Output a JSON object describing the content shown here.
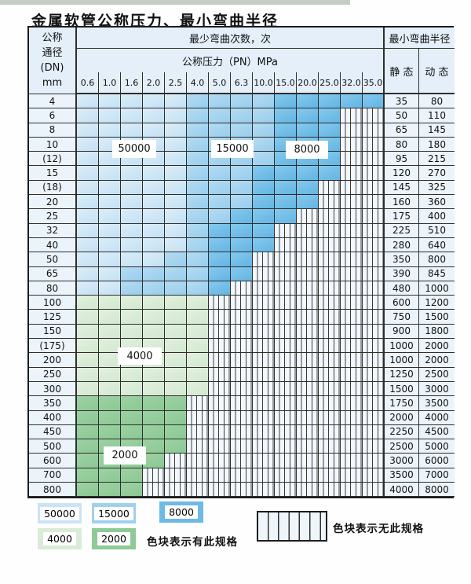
{
  "page": {
    "title": "金属软管公称压力、最小弯曲半径"
  },
  "table": {
    "header": {
      "dn_lines": [
        "公称",
        "通径",
        "(DN)",
        "mm"
      ],
      "cycles_title": "最少弯曲次数，次",
      "pressure_title": "公称压力（PN）MPa",
      "radius_title": "最小弯曲半径",
      "static_label": "静 态",
      "dynamic_label": "动 态",
      "pressures": [
        "0.6",
        "1.0",
        "1.6",
        "2.0",
        "2.5",
        "4.0",
        "5.0",
        "6.3",
        "10.0",
        "15.0",
        "20.0",
        "25.0",
        "32.0",
        "35.0"
      ]
    },
    "rows": [
      {
        "dn": "4",
        "zones": [
          "a",
          "a",
          "a",
          "a",
          "a",
          "b",
          "b",
          "b",
          "b",
          "c",
          "c",
          "c",
          "c",
          "c"
        ],
        "static": "35",
        "dynamic": "80"
      },
      {
        "dn": "6",
        "zones": [
          "a",
          "a",
          "a",
          "a",
          "a",
          "b",
          "b",
          "b",
          "b",
          "c",
          "c",
          "c",
          "x",
          "x"
        ],
        "static": "50",
        "dynamic": "110"
      },
      {
        "dn": "8",
        "zones": [
          "a",
          "a",
          "a",
          "a",
          "a",
          "b",
          "b",
          "b",
          "b",
          "c",
          "c",
          "c",
          "x",
          "x"
        ],
        "static": "65",
        "dynamic": "145"
      },
      {
        "dn": "10",
        "zones": [
          "a",
          "a",
          "a",
          "a",
          "a",
          "b",
          "b",
          "b",
          "b",
          "c",
          "c",
          "c",
          "x",
          "x"
        ],
        "static": "80",
        "dynamic": "180"
      },
      {
        "dn": "(12)",
        "zones": [
          "a",
          "a",
          "a",
          "a",
          "a",
          "b",
          "b",
          "b",
          "b",
          "c",
          "c",
          "c",
          "x",
          "x"
        ],
        "static": "95",
        "dynamic": "215"
      },
      {
        "dn": "15",
        "zones": [
          "a",
          "a",
          "a",
          "a",
          "a",
          "b",
          "b",
          "b",
          "c",
          "c",
          "c",
          "c",
          "x",
          "x"
        ],
        "static": "120",
        "dynamic": "270"
      },
      {
        "dn": "(18)",
        "zones": [
          "a",
          "a",
          "a",
          "a",
          "a",
          "b",
          "b",
          "b",
          "c",
          "c",
          "c",
          "x",
          "x",
          "x"
        ],
        "static": "145",
        "dynamic": "325"
      },
      {
        "dn": "20",
        "zones": [
          "a",
          "a",
          "a",
          "a",
          "a",
          "b",
          "b",
          "b",
          "c",
          "c",
          "c",
          "x",
          "x",
          "x"
        ],
        "static": "160",
        "dynamic": "360"
      },
      {
        "dn": "25",
        "zones": [
          "a",
          "a",
          "a",
          "a",
          "a",
          "b",
          "b",
          "c",
          "c",
          "c",
          "x",
          "x",
          "x",
          "x"
        ],
        "static": "175",
        "dynamic": "400"
      },
      {
        "dn": "32",
        "zones": [
          "a",
          "a",
          "a",
          "a",
          "a",
          "b",
          "c",
          "c",
          "c",
          "x",
          "x",
          "x",
          "x",
          "x"
        ],
        "static": "225",
        "dynamic": "510"
      },
      {
        "dn": "40",
        "zones": [
          "a",
          "a",
          "a",
          "a",
          "a",
          "b",
          "c",
          "c",
          "c",
          "x",
          "x",
          "x",
          "x",
          "x"
        ],
        "static": "280",
        "dynamic": "640"
      },
      {
        "dn": "50",
        "zones": [
          "a",
          "a",
          "a",
          "a",
          "b",
          "b",
          "c",
          "c",
          "x",
          "x",
          "x",
          "x",
          "x",
          "x"
        ],
        "static": "350",
        "dynamic": "800"
      },
      {
        "dn": "65",
        "zones": [
          "a",
          "a",
          "b",
          "b",
          "b",
          "b",
          "c",
          "c",
          "x",
          "x",
          "x",
          "x",
          "x",
          "x"
        ],
        "static": "390",
        "dynamic": "845"
      },
      {
        "dn": "80",
        "zones": [
          "a",
          "a",
          "b",
          "b",
          "b",
          "b",
          "c",
          "x",
          "x",
          "x",
          "x",
          "x",
          "x",
          "x"
        ],
        "static": "480",
        "dynamic": "1000"
      },
      {
        "dn": "100",
        "zones": [
          "d",
          "d",
          "d",
          "d",
          "d",
          "d",
          "x",
          "x",
          "x",
          "x",
          "x",
          "x",
          "x",
          "x"
        ],
        "static": "600",
        "dynamic": "1200"
      },
      {
        "dn": "125",
        "zones": [
          "d",
          "d",
          "d",
          "d",
          "d",
          "d",
          "x",
          "x",
          "x",
          "x",
          "x",
          "x",
          "x",
          "x"
        ],
        "static": "750",
        "dynamic": "1500"
      },
      {
        "dn": "150",
        "zones": [
          "d",
          "d",
          "d",
          "d",
          "d",
          "d",
          "x",
          "x",
          "x",
          "x",
          "x",
          "x",
          "x",
          "x"
        ],
        "static": "900",
        "dynamic": "1800"
      },
      {
        "dn": "(175)",
        "zones": [
          "d",
          "d",
          "d",
          "d",
          "d",
          "d",
          "x",
          "x",
          "x",
          "x",
          "x",
          "x",
          "x",
          "x"
        ],
        "static": "1000",
        "dynamic": "2000"
      },
      {
        "dn": "200",
        "zones": [
          "d",
          "d",
          "d",
          "d",
          "d",
          "d",
          "x",
          "x",
          "x",
          "x",
          "x",
          "x",
          "x",
          "x"
        ],
        "static": "1000",
        "dynamic": "2000"
      },
      {
        "dn": "250",
        "zones": [
          "d",
          "d",
          "d",
          "d",
          "d",
          "d",
          "x",
          "x",
          "x",
          "x",
          "x",
          "x",
          "x",
          "x"
        ],
        "static": "1250",
        "dynamic": "2500"
      },
      {
        "dn": "300",
        "zones": [
          "d",
          "d",
          "d",
          "d",
          "d",
          "d",
          "x",
          "x",
          "x",
          "x",
          "x",
          "x",
          "x",
          "x"
        ],
        "static": "1500",
        "dynamic": "3000"
      },
      {
        "dn": "350",
        "zones": [
          "e",
          "e",
          "e",
          "e",
          "e",
          "x",
          "x",
          "x",
          "x",
          "x",
          "x",
          "x",
          "x",
          "x"
        ],
        "static": "1750",
        "dynamic": "3500"
      },
      {
        "dn": "400",
        "zones": [
          "e",
          "e",
          "e",
          "e",
          "e",
          "x",
          "x",
          "x",
          "x",
          "x",
          "x",
          "x",
          "x",
          "x"
        ],
        "static": "2000",
        "dynamic": "4000"
      },
      {
        "dn": "450",
        "zones": [
          "e",
          "e",
          "e",
          "e",
          "e",
          "x",
          "x",
          "x",
          "x",
          "x",
          "x",
          "x",
          "x",
          "x"
        ],
        "static": "2250",
        "dynamic": "4500"
      },
      {
        "dn": "500",
        "zones": [
          "e",
          "e",
          "e",
          "e",
          "e",
          "x",
          "x",
          "x",
          "x",
          "x",
          "x",
          "x",
          "x",
          "x"
        ],
        "static": "2500",
        "dynamic": "5000"
      },
      {
        "dn": "600",
        "zones": [
          "e",
          "e",
          "e",
          "e",
          "x",
          "x",
          "x",
          "x",
          "x",
          "x",
          "x",
          "x",
          "x",
          "x"
        ],
        "static": "3000",
        "dynamic": "6000"
      },
      {
        "dn": "700",
        "zones": [
          "e",
          "e",
          "e",
          "x",
          "x",
          "x",
          "x",
          "x",
          "x",
          "x",
          "x",
          "x",
          "x",
          "x"
        ],
        "static": "3500",
        "dynamic": "7000"
      },
      {
        "dn": "800",
        "zones": [
          "e",
          "e",
          "e",
          "x",
          "x",
          "x",
          "x",
          "x",
          "x",
          "x",
          "x",
          "x",
          "x",
          "x"
        ],
        "static": "4000",
        "dynamic": "8000"
      }
    ]
  },
  "zone_labels": [
    {
      "text": "50000"
    },
    {
      "text": "15000"
    },
    {
      "text": "8000"
    },
    {
      "text": "4000"
    },
    {
      "text": "2000"
    }
  ],
  "legend": {
    "items": [
      {
        "value": "50000"
      },
      {
        "value": "15000"
      },
      {
        "value": "8000"
      },
      {
        "value": "4000"
      },
      {
        "value": "2000"
      }
    ],
    "has_spec_note": "色块表示有此规格",
    "no_spec_note": "色块表示无此规格"
  },
  "colors": {
    "cycles_50000": "#c9e4f5",
    "cycles_15000": "#9fd1ee",
    "cycles_8000": "#6dbae6",
    "cycles_4000": "#d9ecd7",
    "cycles_2000": "#8dca95",
    "no_spec_bg": "#f2f8fd",
    "header_bg": "#e4eff9"
  }
}
